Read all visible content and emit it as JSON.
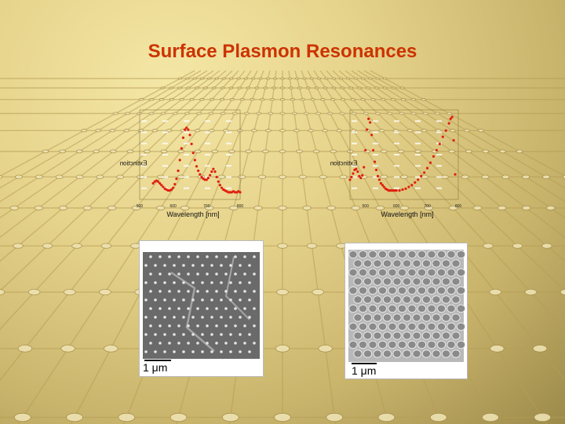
{
  "slide": {
    "title": "Surface Plasmon Resonances",
    "scale_bar_left": "1 μm",
    "scale_bar_right": "1 μm"
  },
  "colors": {
    "title": "#cc3300",
    "marker": "#e02010",
    "micro_left_bg": "#6a6a6a",
    "micro_right_bg": "#8a8a8a"
  },
  "chart_data": [
    {
      "type": "scatter",
      "title": "",
      "xlabel": "Wavelength [nm]",
      "ylabel": "Extinction",
      "xticks": [
        "500",
        "600",
        "700",
        "800"
      ],
      "xlim": [
        500,
        800
      ],
      "ylim": [
        0,
        1
      ],
      "grid": true,
      "series": [
        {
          "x": [
            540,
            545,
            550,
            555,
            560,
            565,
            570,
            575,
            580,
            585,
            590,
            595,
            600,
            605,
            610,
            615,
            620,
            625,
            630,
            635,
            640,
            645,
            650,
            655,
            660,
            665,
            670,
            675,
            680,
            685,
            690,
            695,
            700,
            705,
            710,
            715,
            720,
            725,
            730,
            735,
            740,
            745,
            750,
            755,
            760,
            765,
            770,
            775,
            780,
            785,
            790,
            795,
            800
          ],
          "y": [
            0.18,
            0.2,
            0.21,
            0.2,
            0.18,
            0.16,
            0.14,
            0.12,
            0.11,
            0.1,
            0.1,
            0.11,
            0.13,
            0.17,
            0.23,
            0.32,
            0.44,
            0.57,
            0.69,
            0.78,
            0.8,
            0.78,
            0.72,
            0.62,
            0.52,
            0.44,
            0.37,
            0.32,
            0.28,
            0.25,
            0.23,
            0.22,
            0.22,
            0.24,
            0.27,
            0.31,
            0.34,
            0.31,
            0.25,
            0.2,
            0.16,
            0.13,
            0.11,
            0.1,
            0.09,
            0.08,
            0.08,
            0.08,
            0.09,
            0.08,
            0.08,
            0.09,
            0.08
          ]
        }
      ]
    },
    {
      "type": "scatter",
      "title": "",
      "xlabel": "Wavelength [nm]",
      "ylabel": "Extinction",
      "xticks": [
        "500",
        "600",
        "700",
        "800"
      ],
      "xlim": [
        450,
        800
      ],
      "ylim": [
        0,
        1
      ],
      "grid": true,
      "series": [
        {
          "x": [
            450,
            455,
            460,
            465,
            470,
            475,
            480,
            485,
            490,
            495,
            500,
            505,
            510,
            515,
            520,
            525,
            530,
            535,
            540,
            545,
            550,
            555,
            560,
            565,
            570,
            575,
            580,
            585,
            590,
            595,
            600,
            610,
            620,
            630,
            640,
            650,
            660,
            670,
            680,
            690,
            700,
            710,
            720,
            730,
            740,
            750,
            760,
            770,
            775,
            780,
            785,
            790
          ],
          "y": [
            0.22,
            0.25,
            0.29,
            0.33,
            0.34,
            0.31,
            0.26,
            0.24,
            0.27,
            0.36,
            0.55,
            0.78,
            0.9,
            0.86,
            0.72,
            0.55,
            0.42,
            0.33,
            0.26,
            0.22,
            0.18,
            0.16,
            0.14,
            0.12,
            0.11,
            0.1,
            0.1,
            0.1,
            0.1,
            0.1,
            0.1,
            0.1,
            0.11,
            0.12,
            0.14,
            0.16,
            0.19,
            0.22,
            0.26,
            0.3,
            0.35,
            0.41,
            0.48,
            0.55,
            0.62,
            0.7,
            0.77,
            0.85,
            0.9,
            0.92,
            0.66,
            0.28
          ]
        }
      ]
    }
  ]
}
